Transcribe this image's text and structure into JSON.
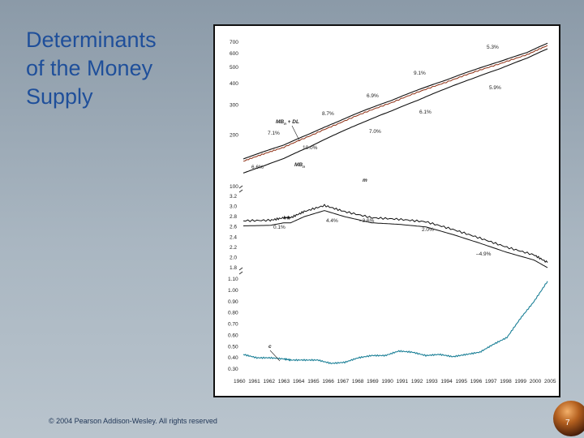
{
  "slide": {
    "title": "Determinants\nof the Money\nSupply",
    "copyright": "© 2004 Pearson Addison-Wesley. All rights reserved",
    "page_number": "7"
  },
  "colors": {
    "background": "#a9b6c1",
    "title": "#1f4f9a",
    "mb_line": "#8b2a0e",
    "c_line": "#1a7f96",
    "lines": "#111111"
  },
  "chart_data": [
    {
      "type": "line",
      "title": "",
      "y_scale": "log",
      "ylim": [
        100,
        700
      ],
      "y_ticks": [
        "700",
        "600",
        "500",
        "400",
        "300",
        "200",
        "100"
      ],
      "series": [
        {
          "name": "MB_n + DL",
          "x": [
            1960,
            1963,
            1966,
            1970,
            1974,
            1978,
            1982,
            1986,
            1990,
            1994,
            1998,
            2002,
            2005
          ],
          "values": [
            145,
            160,
            175,
            205,
            240,
            280,
            320,
            370,
            420,
            480,
            540,
            610,
            690
          ]
        },
        {
          "name": "MB_n",
          "x": [
            1960,
            1963,
            1966,
            1970,
            1974,
            1978,
            1982,
            1986,
            1990,
            1994,
            1998,
            2002,
            2005
          ],
          "values": [
            120,
            132,
            146,
            172,
            205,
            240,
            278,
            322,
            375,
            430,
            490,
            565,
            640
          ]
        }
      ],
      "annotations": [
        {
          "label": "5.3%"
        },
        {
          "label": "9.1%"
        },
        {
          "label": "5.9%"
        },
        {
          "label": "6.9%"
        },
        {
          "label": "6.1%"
        },
        {
          "label": "8.7%"
        },
        {
          "label": "7.0%"
        },
        {
          "label": "7.1%"
        },
        {
          "label": "10.0%"
        },
        {
          "label": "6.6%"
        }
      ],
      "series_labels": [
        {
          "label": "MB",
          "sub": "n",
          "suffix": " + DL"
        },
        {
          "label": "MB",
          "sub": "n",
          "suffix": ""
        }
      ]
    },
    {
      "type": "line",
      "ylim": [
        1.8,
        3.2
      ],
      "y_ticks": [
        "3.2",
        "3.0",
        "2.8",
        "2.6",
        "2.4",
        "2.2",
        "2.0",
        "1.8"
      ],
      "series": [
        {
          "name": "m",
          "x": [
            1960,
            1964,
            1966,
            1967,
            1969,
            1972,
            1975,
            1979,
            1983,
            1987,
            1991,
            1995,
            1999,
            2003,
            2005
          ],
          "values": [
            2.72,
            2.73,
            2.78,
            2.78,
            2.9,
            3.02,
            2.9,
            2.78,
            2.75,
            2.7,
            2.55,
            2.38,
            2.2,
            2.05,
            1.9
          ]
        }
      ],
      "annotations": [
        {
          "label": "m"
        },
        {
          "label": "0.1%"
        },
        {
          "label": "4.4%"
        },
        {
          "label": "–3.6%"
        },
        {
          "label": "2.0%"
        },
        {
          "label": "–4.9%"
        }
      ]
    },
    {
      "type": "line",
      "ylim": [
        0.3,
        1.1
      ],
      "y_ticks": [
        "1.10",
        "1.00",
        "0.90",
        "0.80",
        "0.70",
        "0.60",
        "0.50",
        "0.40",
        "0.30"
      ],
      "series": [
        {
          "name": "c",
          "x": [
            1960,
            1962,
            1964,
            1966,
            1967,
            1969,
            1971,
            1973,
            1975,
            1977,
            1979,
            1981,
            1983,
            1985,
            1987,
            1989,
            1991,
            1993,
            1995,
            1997,
            1999,
            2001,
            2003,
            2005
          ],
          "values": [
            0.43,
            0.4,
            0.4,
            0.39,
            0.38,
            0.38,
            0.38,
            0.35,
            0.36,
            0.4,
            0.42,
            0.42,
            0.46,
            0.45,
            0.42,
            0.43,
            0.41,
            0.43,
            0.45,
            0.52,
            0.58,
            0.75,
            0.9,
            1.08
          ]
        }
      ],
      "annotations": [
        {
          "label": "c"
        }
      ]
    }
  ],
  "x_axis": {
    "xlim": [
      1960,
      2005
    ],
    "tick_labels": [
      "1960",
      "1961",
      "1962",
      "1963",
      "1964",
      "1965",
      "1966",
      "1967",
      "1968",
      "1969",
      "1990",
      "1991",
      "1992",
      "1993",
      "1994",
      "1995",
      "1996",
      "1997",
      "1998",
      "1999",
      "2000",
      "2005"
    ]
  }
}
